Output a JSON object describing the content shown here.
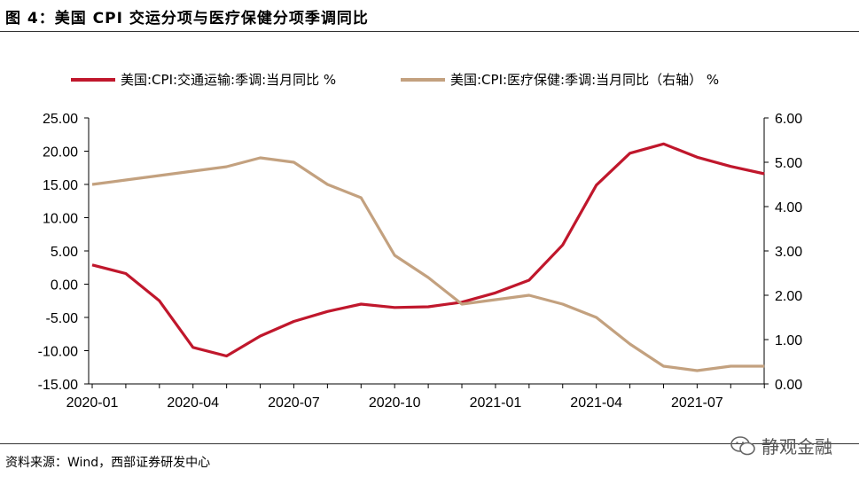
{
  "header": {
    "title": "图 4：美国 CPI 交运分项与医疗保健分项季调同比"
  },
  "footer": {
    "source": "资料来源：Wind，西部证券研发中心",
    "watermark": "静观金融"
  },
  "colors": {
    "series1": "#c0172c",
    "series2": "#c3a17f"
  },
  "chart_data": {
    "type": "line",
    "x": [
      "2020-01",
      "2020-02",
      "2020-03",
      "2020-04",
      "2020-05",
      "2020-06",
      "2020-07",
      "2020-08",
      "2020-09",
      "2020-10",
      "2020-11",
      "2020-12",
      "2021-01",
      "2021-02",
      "2021-03",
      "2021-04",
      "2021-05",
      "2021-06",
      "2021-07",
      "2021-08",
      "2021-09"
    ],
    "x_tick_labels": [
      "2020-01",
      "2020-04",
      "2020-07",
      "2020-10",
      "2021-01",
      "2021-04",
      "2021-07"
    ],
    "left_axis": {
      "ylim": [
        -15,
        25
      ],
      "ticks": [
        "25.00",
        "20.00",
        "15.00",
        "10.00",
        "5.00",
        "0.00",
        "-5.00",
        "-10.00",
        "-15.00"
      ]
    },
    "right_axis": {
      "ylim": [
        0,
        6
      ],
      "ticks": [
        "6.00",
        "5.00",
        "4.00",
        "3.00",
        "2.00",
        "1.00",
        "0.00"
      ]
    },
    "series": [
      {
        "name": "美国:CPI:交通运输:季调:当月同比 %",
        "axis": "left",
        "values": [
          2.9,
          1.6,
          -2.5,
          -9.5,
          -10.8,
          -7.8,
          -5.6,
          -4.1,
          -3.0,
          -3.5,
          -3.4,
          -2.7,
          -1.3,
          0.6,
          5.9,
          14.9,
          19.7,
          21.1,
          19.1,
          17.7,
          16.6
        ]
      },
      {
        "name": "美国:CPI:医疗保健:季调:当月同比（右轴） %",
        "axis": "right",
        "values": [
          4.5,
          4.6,
          4.7,
          4.8,
          4.9,
          5.1,
          5.0,
          4.5,
          4.2,
          2.9,
          2.4,
          1.8,
          1.9,
          2.0,
          1.8,
          1.5,
          0.9,
          0.4,
          0.3,
          0.4,
          0.4
        ]
      }
    ],
    "legend_position": "top"
  }
}
